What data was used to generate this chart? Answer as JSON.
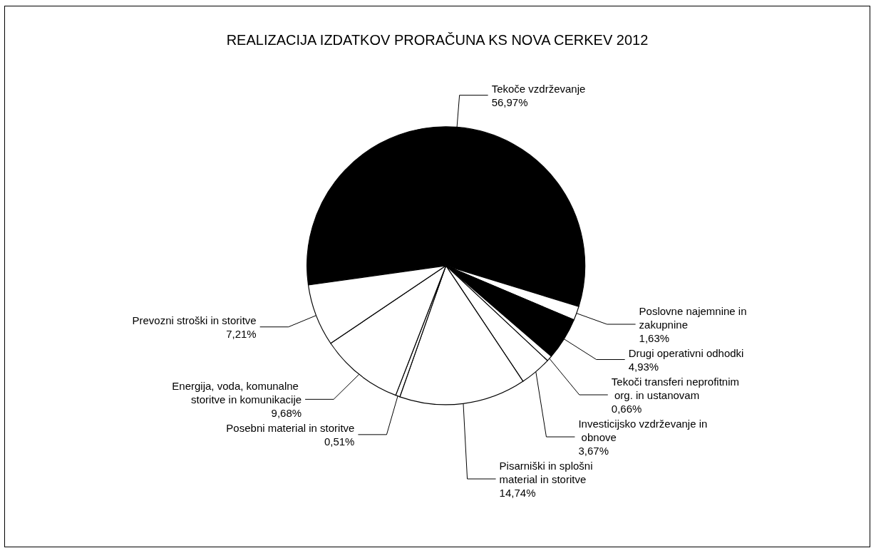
{
  "chart_data": {
    "type": "pie",
    "title": "REALIZACIJA IZDATKOV PRORAČUNA KS NOVA CERKEV 2012",
    "categories": [
      "Tekoče vzdrževanje",
      "Poslovne najemnine in zakupnine",
      "Drugi operativni odhodki",
      "Tekoči transferi neprofitnim org. in ustanovam",
      "Investicijsko vzdrževanje in obnove",
      "Pisarniški in splošni material in storitve",
      "Posebni material in storitve",
      "Energija, voda, komunalne storitve in komunikacije",
      "Prevozni stroški in storitve"
    ],
    "values": [
      56.97,
      1.63,
      4.93,
      0.66,
      3.67,
      14.74,
      0.51,
      9.68,
      7.21
    ],
    "value_labels": [
      "56,97%",
      "1,63%",
      "4,93%",
      "0,66%",
      "3,67%",
      "14,74%",
      "0,51%",
      "9,68%",
      "7,21%"
    ],
    "colors": [
      "#000000",
      "#ffffff",
      "#000000",
      "#ffffff",
      "#ffffff",
      "#ffffff",
      "#ffffff",
      "#ffffff",
      "#ffffff"
    ],
    "legend": false
  }
}
